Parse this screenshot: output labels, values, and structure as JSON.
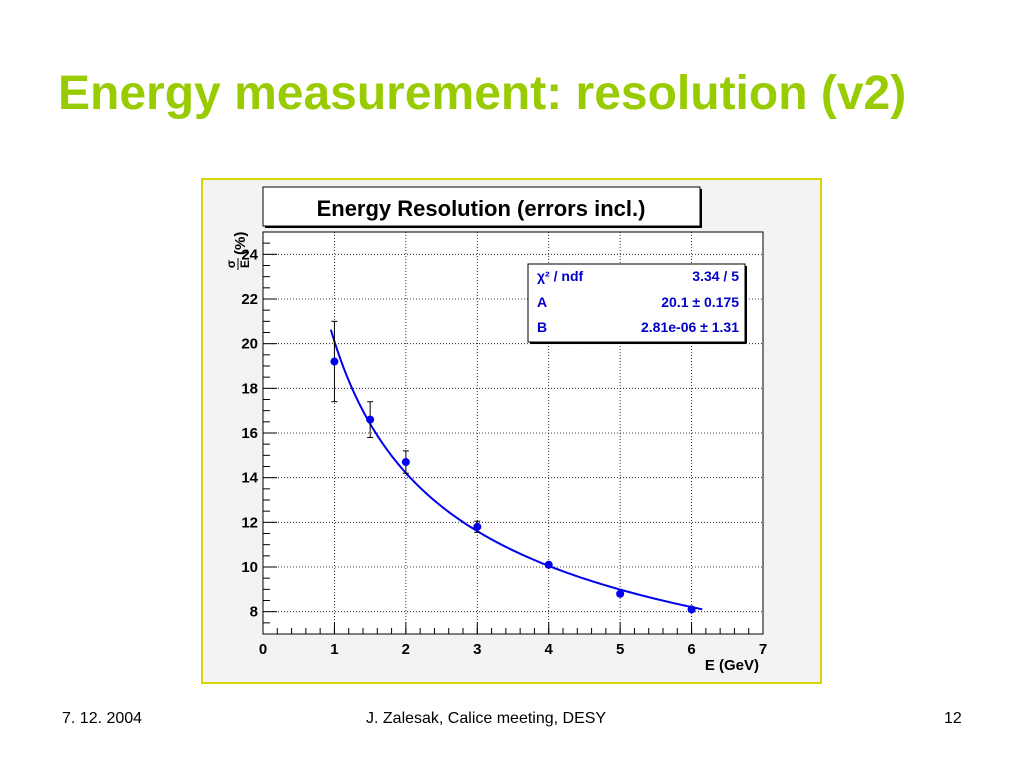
{
  "slide": {
    "title": "Energy measurement: resolution (v2)",
    "footer": {
      "date": "7. 12. 2004",
      "center": "J. Zalesak, Calice meeting, DESY",
      "page": "12"
    },
    "colors": {
      "title": "#99cc00",
      "frame_border": "#d9d500",
      "plot_bg": "#f5f2f6",
      "series": "#0000ee"
    }
  },
  "chart_data": {
    "type": "scatter",
    "title": "Energy Resolution (errors incl.)",
    "xlabel": "E (GeV)",
    "ylabel_num": "σ",
    "ylabel_den": "E",
    "ylabel_unit": "(%)",
    "xlim": [
      0,
      7
    ],
    "ylim": [
      7,
      25
    ],
    "xticks": [
      0,
      1,
      2,
      3,
      4,
      5,
      6,
      7
    ],
    "yticks": [
      8,
      10,
      12,
      14,
      16,
      18,
      20,
      22,
      24
    ],
    "grid": true,
    "points": [
      {
        "x": 1.0,
        "y": 19.2,
        "err": 1.8
      },
      {
        "x": 1.5,
        "y": 16.6,
        "err": 0.8
      },
      {
        "x": 2.0,
        "y": 14.7,
        "err": 0.5
      },
      {
        "x": 3.0,
        "y": 11.8,
        "err": 0.25
      },
      {
        "x": 4.0,
        "y": 10.1,
        "err": 0.1
      },
      {
        "x": 5.0,
        "y": 8.8,
        "err": 0.1
      },
      {
        "x": 6.0,
        "y": 8.1,
        "err": 0.1
      }
    ],
    "fit": {
      "function": "sqrt(A^2/E + B^2)",
      "x_range": [
        0.95,
        6.15
      ],
      "stats": [
        {
          "label": "χ² / ndf",
          "value": "3.34 / 5"
        },
        {
          "label": "A",
          "value": "20.1",
          "pm": "±",
          "err": "0.175"
        },
        {
          "label": "B",
          "value": "2.81e-06",
          "pm": "±",
          "err": "1.31"
        }
      ],
      "A": 20.1,
      "B": 2.81e-06
    }
  }
}
